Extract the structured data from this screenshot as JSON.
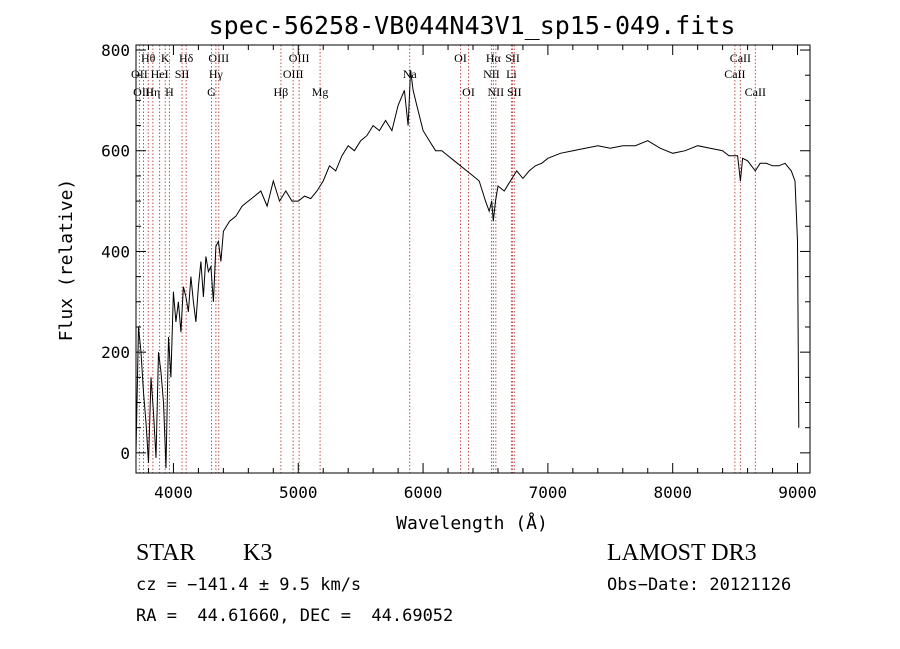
{
  "chart_data": {
    "type": "line",
    "title": "spec-56258-VB044N43V1_sp15-049.fits",
    "xlabel": "Wavelength (Å)",
    "ylabel": "Flux (relative)",
    "xlim": [
      3700,
      9100
    ],
    "ylim": [
      -40,
      810
    ],
    "xticks": [
      4000,
      5000,
      6000,
      7000,
      8000,
      9000
    ],
    "yticks": [
      0,
      200,
      400,
      600,
      800
    ],
    "grid": false,
    "series": [
      {
        "name": "flux",
        "x": [
          3700,
          3720,
          3740,
          3760,
          3780,
          3800,
          3820,
          3840,
          3860,
          3880,
          3900,
          3920,
          3940,
          3960,
          3980,
          4000,
          4020,
          4040,
          4060,
          4080,
          4100,
          4120,
          4140,
          4160,
          4180,
          4200,
          4220,
          4240,
          4260,
          4280,
          4300,
          4320,
          4340,
          4360,
          4380,
          4400,
          4450,
          4500,
          4550,
          4600,
          4650,
          4700,
          4750,
          4800,
          4850,
          4900,
          4950,
          5000,
          5050,
          5100,
          5150,
          5200,
          5250,
          5300,
          5350,
          5400,
          5450,
          5500,
          5550,
          5600,
          5650,
          5700,
          5750,
          5800,
          5850,
          5880,
          5900,
          5920,
          5950,
          6000,
          6050,
          6100,
          6150,
          6200,
          6250,
          6300,
          6350,
          6400,
          6450,
          6500,
          6530,
          6550,
          6563,
          6580,
          6600,
          6650,
          6700,
          6750,
          6800,
          6850,
          6900,
          6950,
          7000,
          7100,
          7200,
          7300,
          7400,
          7500,
          7600,
          7700,
          7800,
          7900,
          8000,
          8100,
          8200,
          8300,
          8400,
          8450,
          8500,
          8520,
          8542,
          8560,
          8600,
          8662,
          8700,
          8750,
          8800,
          8850,
          8900,
          8950,
          8980,
          9000,
          9010
        ],
        "y": [
          0,
          250,
          200,
          120,
          60,
          -20,
          150,
          80,
          -10,
          200,
          160,
          100,
          -30,
          230,
          150,
          320,
          260,
          300,
          240,
          330,
          310,
          280,
          350,
          300,
          260,
          330,
          380,
          310,
          390,
          360,
          370,
          300,
          410,
          420,
          380,
          440,
          460,
          470,
          490,
          500,
          510,
          520,
          490,
          540,
          500,
          520,
          500,
          500,
          510,
          505,
          520,
          540,
          570,
          560,
          590,
          610,
          600,
          620,
          630,
          650,
          640,
          660,
          640,
          690,
          720,
          650,
          760,
          720,
          690,
          640,
          620,
          600,
          600,
          590,
          580,
          570,
          560,
          550,
          540,
          500,
          480,
          500,
          460,
          500,
          530,
          520,
          540,
          560,
          545,
          560,
          570,
          575,
          585,
          595,
          600,
          605,
          610,
          605,
          610,
          610,
          620,
          605,
          595,
          600,
          610,
          605,
          600,
          590,
          590,
          590,
          540,
          585,
          580,
          560,
          575,
          575,
          570,
          570,
          575,
          560,
          540,
          420,
          50
        ]
      }
    ],
    "lines": [
      {
        "label": "Hθ",
        "x": 3798,
        "row": 1
      },
      {
        "label": "OII",
        "x": 3727,
        "row": 2
      },
      {
        "label": "OIII",
        "x": 3760,
        "row": 3
      },
      {
        "label": "Hη",
        "x": 3835,
        "row": 3
      },
      {
        "label": "K",
        "x": 3934,
        "row": 1
      },
      {
        "label": "HeI",
        "x": 3889,
        "row": 2
      },
      {
        "label": "H",
        "x": 3968,
        "row": 3
      },
      {
        "label": "Hδ",
        "x": 4102,
        "row": 1
      },
      {
        "label": "SII",
        "x": 4069,
        "row": 2
      },
      {
        "label": "OIII",
        "x": 4363,
        "row": 1
      },
      {
        "label": "Hγ",
        "x": 4340,
        "row": 2
      },
      {
        "label": "G",
        "x": 4305,
        "row": 3
      },
      {
        "label": "OIII",
        "x": 5007,
        "row": 1
      },
      {
        "label": "OIII",
        "x": 4959,
        "row": 2
      },
      {
        "label": "Hβ",
        "x": 4861,
        "row": 3
      },
      {
        "label": "Mg",
        "x": 5175,
        "row": 3
      },
      {
        "label": "Na",
        "x": 5893,
        "row": 2
      },
      {
        "label": "OI",
        "x": 6300,
        "row": 1
      },
      {
        "label": "OI",
        "x": 6364,
        "row": 3
      },
      {
        "label": "Hα",
        "x": 6563,
        "row": 1
      },
      {
        "label": "NII",
        "x": 6548,
        "row": 2
      },
      {
        "label": "NII",
        "x": 6583,
        "row": 3
      },
      {
        "label": "SII",
        "x": 6717,
        "row": 1
      },
      {
        "label": "Li",
        "x": 6708,
        "row": 2
      },
      {
        "label": "SII",
        "x": 6731,
        "row": 3
      },
      {
        "label": "CaII",
        "x": 8498,
        "row": 2
      },
      {
        "label": "CaII",
        "x": 8542,
        "row": 1
      },
      {
        "label": "CaII",
        "x": 8662,
        "row": 3
      }
    ]
  },
  "info": {
    "object_class": "STAR",
    "subclass": "K3",
    "survey": "LAMOST DR3",
    "velocity": "cz = −141.4 ± 9.5 km/s",
    "obs_date": "Obs−Date: 20121126",
    "coords": "RA =  44.61660, DEC =  44.69052"
  },
  "colors": {
    "line_marker": "#c0504d",
    "spectrum": "#000000",
    "axes": "#000000"
  }
}
